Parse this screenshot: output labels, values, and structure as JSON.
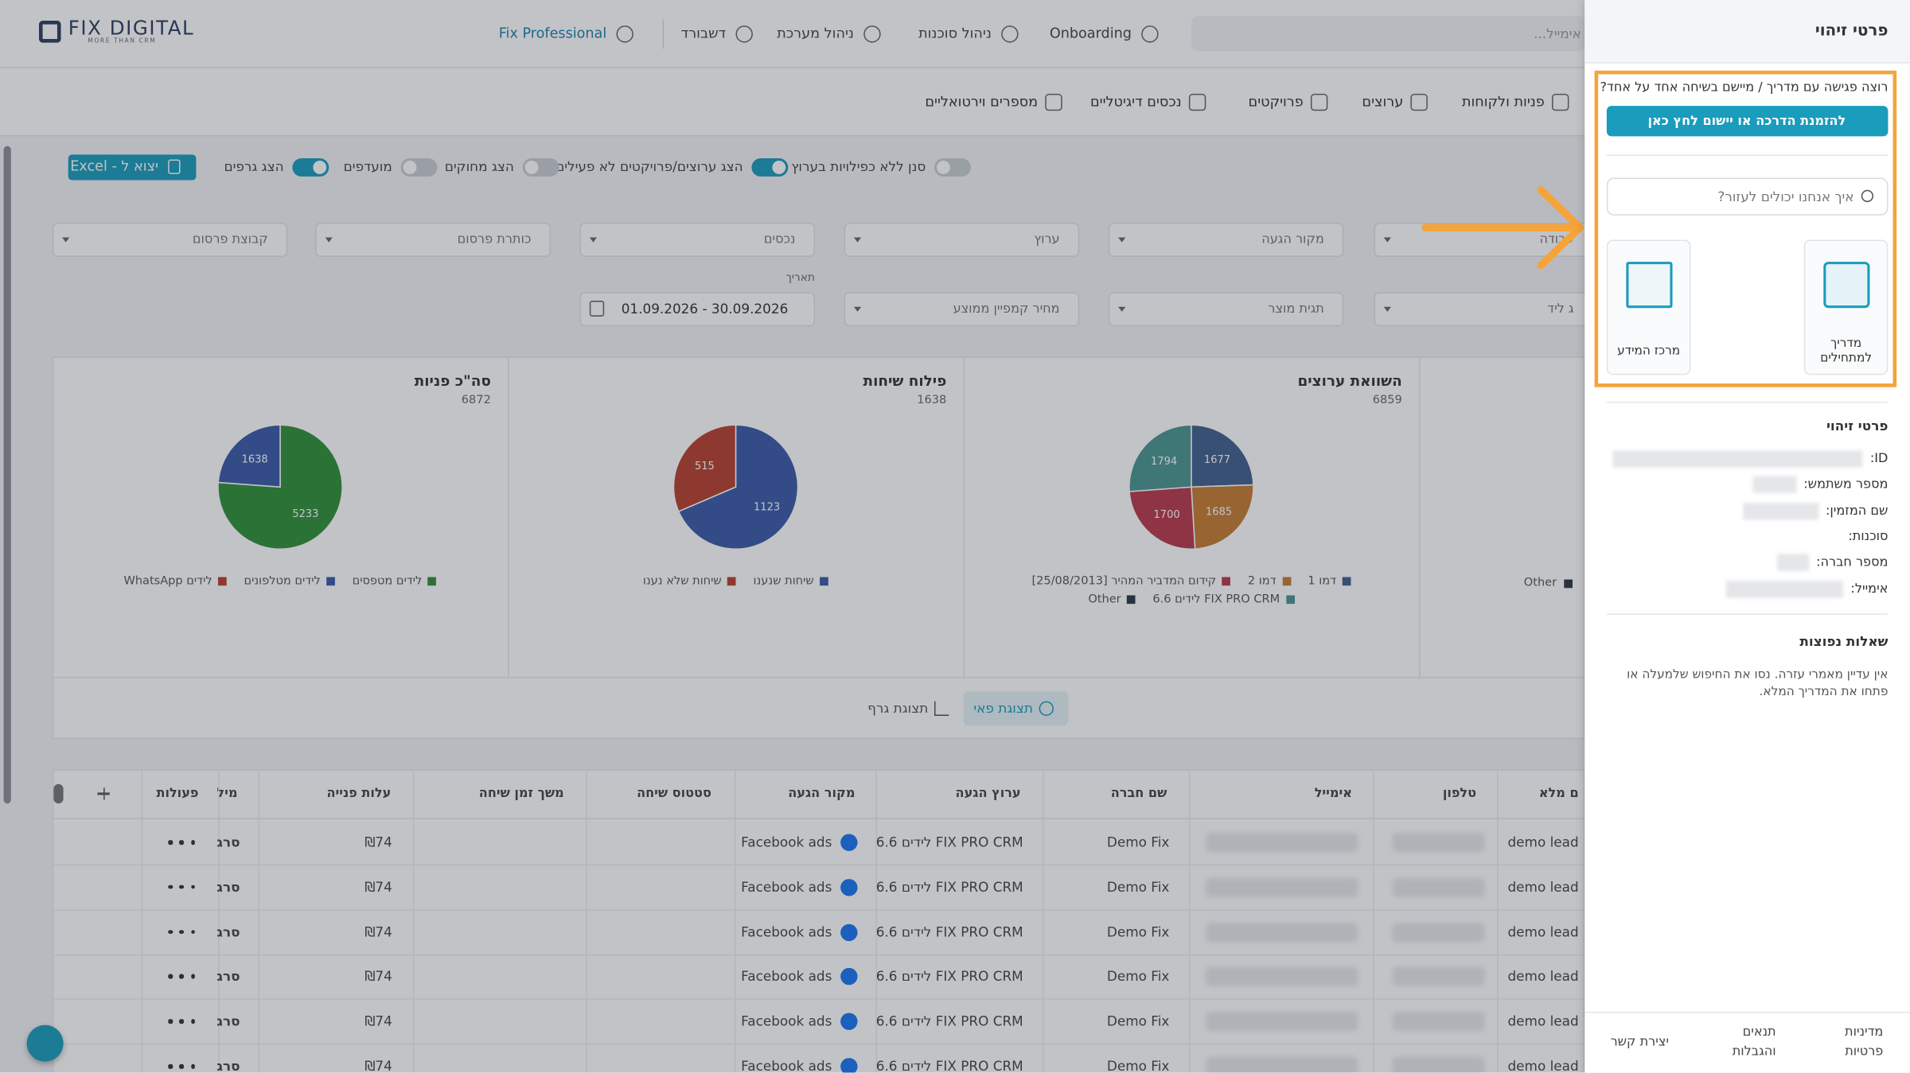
{
  "header": {
    "logo": "FIX DIGITAL",
    "logo_tagline": "MORE THAN CRM",
    "nav": [
      "Fix Professional",
      "דשבורד",
      "ניהול מערכת",
      "ניהול סוכנות",
      "Onboarding"
    ],
    "search_placeholder": "אימייל..."
  },
  "tabs": [
    "פניות ולקוחות",
    "ערוצים",
    "פרויקטים",
    "נכסים דיגיטליים",
    "מספרים וירטואליים"
  ],
  "toolbar": {
    "export_button": "יצוא ל - Excel",
    "toggles": [
      {
        "label": "סנן ללא כפילויות בערוץ",
        "on": false
      },
      {
        "label": "הצג ערוצים/פרויקטים לא פעילים",
        "on": true
      },
      {
        "label": "הצג מחוקים",
        "on": false
      },
      {
        "label": "מועדפים",
        "on": false
      },
      {
        "label": "הצג גרפים",
        "on": true
      }
    ]
  },
  "filters": {
    "row1": [
      "עבודה",
      "מקור הגעה",
      "ערוץ",
      "נכסים",
      "כותרת פרסום",
      "קבוצת פרסום"
    ],
    "row2": [
      "ג ליד",
      "תגית מוצר",
      "מחיר קמפיין ממוצע"
    ],
    "date_label": "תאריך",
    "date_value": "01.09.2026 - 30.09.2026"
  },
  "charts": [
    {
      "title": "השוואת ערוצים",
      "total": 6859,
      "slices": [
        {
          "name": "דמו 1",
          "color": "#41608c",
          "value": 1677
        },
        {
          "name": "דמו 2",
          "color": "#c47c33",
          "value": 1685
        },
        {
          "name": "קידום המדביר המהיר [25/08/2013]",
          "color": "#b73a4c",
          "value": 1700
        },
        {
          "name": "FIX PRO CRM לידים 6.6",
          "color": "#4a9590",
          "value": 1794
        },
        {
          "name": "Other",
          "color": "#2b3644"
        }
      ]
    },
    {
      "title": "פילוח שיחות",
      "total": 1638,
      "slices": [
        {
          "name": "שיחות שנענו",
          "color": "#3a5aa8",
          "value": 1123
        },
        {
          "name": "שיחות שלא נענו",
          "color": "#b7402f",
          "value": 515
        }
      ]
    },
    {
      "title": "סה\"כ פניות",
      "total": 6872,
      "slices": [
        {
          "name": "לידים מטפסים",
          "color": "#2f8f3a",
          "value": 5233
        },
        {
          "name": "לידים מטלפונים",
          "color": "#3a5aa8",
          "value": 1638
        },
        {
          "name": "לידים WhatsApp",
          "color": "#b7402f"
        }
      ]
    }
  ],
  "partial_panel_legend": "Other",
  "view_buttons": [
    "תצוגת פאי",
    "תצוגת גרף"
  ],
  "table": {
    "columns": [
      "ם מלא",
      "טלפון",
      "אימייל",
      "שם חברה",
      "ערוץ הגעה",
      "מקור הגעה",
      "סטטוס שיחה",
      "משך זמן שיחה",
      "עלות פנייה",
      "מיל",
      "פעולות"
    ],
    "rows": [
      {
        "name": "demo lead",
        "company": "Demo Fix",
        "channel": "FIX PRO CRM לידים 6.6",
        "source": "Facebook ads",
        "cost": "₪74",
        "truncated": "סרג"
      },
      {
        "name": "demo lead",
        "company": "Demo Fix",
        "channel": "FIX PRO CRM לידים 6.6",
        "source": "Facebook ads",
        "cost": "₪74",
        "truncated": "סרג"
      },
      {
        "name": "demo lead",
        "company": "Demo Fix",
        "channel": "FIX PRO CRM לידים 6.6",
        "source": "Facebook ads",
        "cost": "₪74",
        "truncated": "סרג"
      },
      {
        "name": "demo lead",
        "company": "Demo Fix",
        "channel": "FIX PRO CRM לידים 6.6",
        "source": "Facebook ads",
        "cost": "₪74",
        "truncated": "סרג"
      },
      {
        "name": "demo lead",
        "company": "Demo Fix",
        "channel": "FIX PRO CRM לידים 6.6",
        "source": "Facebook ads",
        "cost": "₪74",
        "truncated": "סרג"
      },
      {
        "name": "demo lead",
        "company": "Demo Fix",
        "channel": "FIX PRO CRM לידים 6.6",
        "source": "Facebook ads",
        "cost": "₪74",
        "truncated": "סרג"
      }
    ]
  },
  "side_panel": {
    "title": "פרטי זיהוי",
    "promo_text": "רוצה פגישה עם מדריך / מיישם בשיחה אחד על אחד?",
    "promo_button": "להזמנת הדרכה או יישום לחץ כאן",
    "search_placeholder": "איך אנחנו יכולים לעזור?",
    "cards": [
      "מדריך למתחילים",
      "מרכז המידע"
    ],
    "section_title": "פרטי זיהוי",
    "fields": [
      "ID:",
      "מספר משתמש:",
      "שם המזמין:",
      "סוכנות:",
      "מספר חברה:",
      "אימייל:"
    ],
    "faq_title": "שאלות נפוצות",
    "faq_text": "אין עדיין מאמרי עזרה. נסו את החיפוש שלמעלה או פתחו את המדריך המלא.",
    "footer_links": [
      "מדיניות פרטיות",
      "תנאים והגבלות",
      "יצירת קשר"
    ]
  }
}
